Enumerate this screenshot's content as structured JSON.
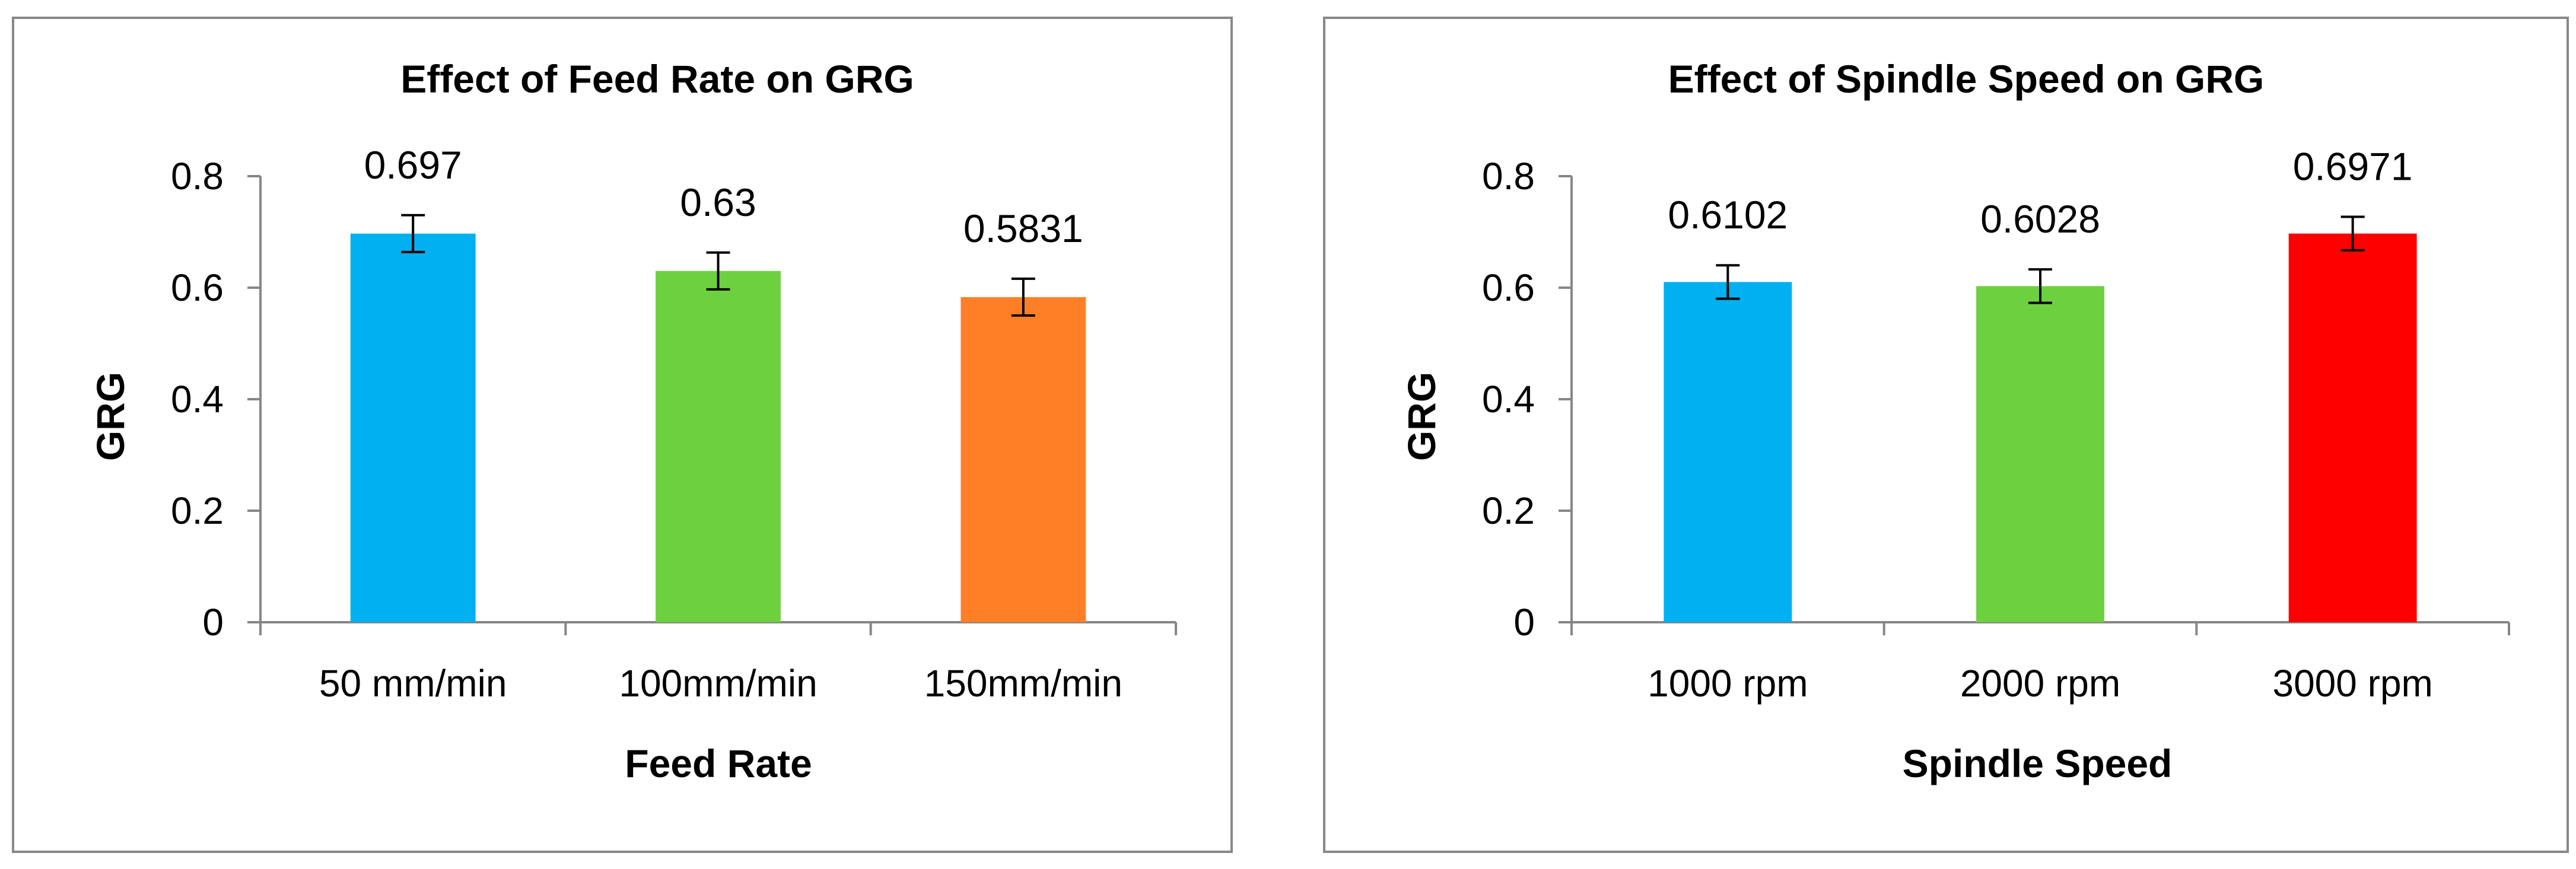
{
  "chart_data": [
    {
      "type": "bar",
      "title": "Effect of Feed Rate on GRG",
      "xlabel": "Feed Rate",
      "ylabel": "GRG",
      "categories": [
        "50 mm/min",
        "100mm/min",
        "150mm/min"
      ],
      "values": [
        0.697,
        0.63,
        0.5831
      ],
      "data_labels": [
        "0.697",
        "0.63",
        "0.5831"
      ],
      "error_bars": [
        0.033,
        0.033,
        0.033
      ],
      "colors": [
        "#00B0F0",
        "#6DD13F",
        "#FF7F27"
      ],
      "ylim": [
        0,
        0.8
      ],
      "yticks": [
        0,
        0.2,
        0.4,
        0.6,
        0.8
      ],
      "ytick_labels": [
        "0",
        "0.2",
        "0.4",
        "0.6",
        "0.8"
      ],
      "grid": false,
      "legend": "none"
    },
    {
      "type": "bar",
      "title": "Effect of Spindle Speed on GRG",
      "xlabel": "Spindle Speed",
      "ylabel": "GRG",
      "categories": [
        "1000 rpm",
        "2000 rpm",
        "3000 rpm"
      ],
      "values": [
        0.6102,
        0.6028,
        0.6971
      ],
      "data_labels": [
        "0.6102",
        "0.6028",
        "0.6971"
      ],
      "error_bars": [
        0.03,
        0.03,
        0.03
      ],
      "colors": [
        "#00B0F0",
        "#6DD13F",
        "#FF0000"
      ],
      "ylim": [
        0,
        0.8
      ],
      "yticks": [
        0,
        0.2,
        0.4,
        0.6,
        0.8
      ],
      "ytick_labels": [
        "0",
        "0.2",
        "0.4",
        "0.6",
        "0.8"
      ],
      "grid": false,
      "legend": "none"
    }
  ]
}
